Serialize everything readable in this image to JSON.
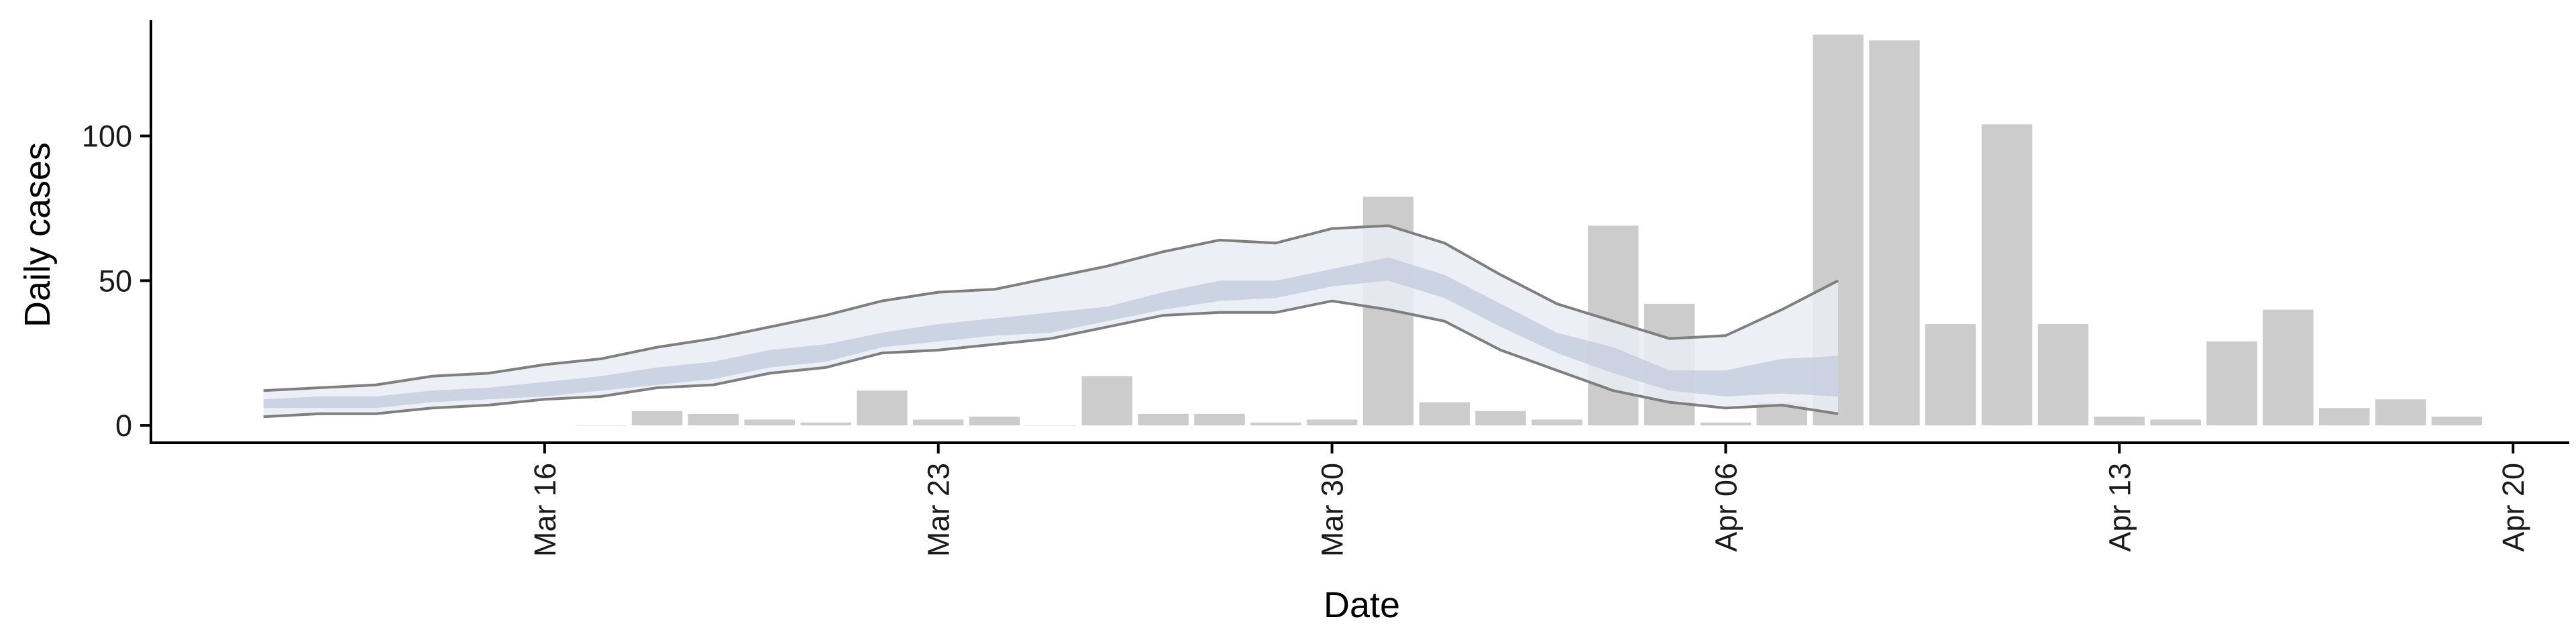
{
  "chart_data": {
    "type": "bar",
    "xlabel": "Date",
    "ylabel": "Daily cases",
    "ylim": [
      -6,
      140
    ],
    "xlim": [
      "2020-03-09",
      "2020-04-21"
    ],
    "x_ticks": [
      {
        "date": "2020-03-16",
        "label": "Mar 16"
      },
      {
        "date": "2020-03-23",
        "label": "Mar 23"
      },
      {
        "date": "2020-03-30",
        "label": "Mar 30"
      },
      {
        "date": "2020-04-06",
        "label": "Apr 06"
      },
      {
        "date": "2020-04-13",
        "label": "Apr 13"
      },
      {
        "date": "2020-04-20",
        "label": "Apr 20"
      }
    ],
    "y_ticks": [
      0,
      50,
      100
    ],
    "grid": false,
    "bars": [
      {
        "date": "2020-03-17",
        "value": 0
      },
      {
        "date": "2020-03-18",
        "value": 5
      },
      {
        "date": "2020-03-19",
        "value": 4
      },
      {
        "date": "2020-03-20",
        "value": 2
      },
      {
        "date": "2020-03-21",
        "value": 1
      },
      {
        "date": "2020-03-22",
        "value": 12
      },
      {
        "date": "2020-03-23",
        "value": 2
      },
      {
        "date": "2020-03-24",
        "value": 3
      },
      {
        "date": "2020-03-25",
        "value": 0
      },
      {
        "date": "2020-03-26",
        "value": 17
      },
      {
        "date": "2020-03-27",
        "value": 4
      },
      {
        "date": "2020-03-28",
        "value": 4
      },
      {
        "date": "2020-03-29",
        "value": 1
      },
      {
        "date": "2020-03-30",
        "value": 2
      },
      {
        "date": "2020-03-31",
        "value": 79
      },
      {
        "date": "2020-04-01",
        "value": 8
      },
      {
        "date": "2020-04-02",
        "value": 5
      },
      {
        "date": "2020-04-03",
        "value": 2
      },
      {
        "date": "2020-04-04",
        "value": 69
      },
      {
        "date": "2020-04-05",
        "value": 42
      },
      {
        "date": "2020-04-06",
        "value": 1
      },
      {
        "date": "2020-04-07",
        "value": 8
      },
      {
        "date": "2020-04-08",
        "value": 135
      },
      {
        "date": "2020-04-09",
        "value": 133
      },
      {
        "date": "2020-04-10",
        "value": 35
      },
      {
        "date": "2020-04-11",
        "value": 104
      },
      {
        "date": "2020-04-12",
        "value": 35
      },
      {
        "date": "2020-04-13",
        "value": 3
      },
      {
        "date": "2020-04-14",
        "value": 2
      },
      {
        "date": "2020-04-15",
        "value": 29
      },
      {
        "date": "2020-04-16",
        "value": 40
      },
      {
        "date": "2020-04-17",
        "value": 6
      },
      {
        "date": "2020-04-18",
        "value": 9
      },
      {
        "date": "2020-04-19",
        "value": 3
      }
    ],
    "estimate_start": "2020-03-11",
    "outer_band": {
      "upper": [
        12,
        13,
        14,
        17,
        18,
        21,
        23,
        27,
        30,
        34,
        38,
        43,
        46,
        47,
        51,
        55,
        60,
        64,
        63,
        68,
        69,
        63,
        52,
        42,
        36,
        30,
        31,
        40,
        50
      ],
      "lower": [
        3,
        4,
        4,
        6,
        7,
        9,
        10,
        13,
        14,
        18,
        20,
        25,
        26,
        28,
        30,
        34,
        38,
        39,
        39,
        43,
        40,
        36,
        26,
        19,
        12,
        8,
        6,
        7,
        4
      ]
    },
    "inner_band": {
      "upper": [
        9,
        10,
        10,
        12,
        13,
        15,
        17,
        20,
        22,
        26,
        28,
        32,
        35,
        37,
        39,
        41,
        46,
        50,
        50,
        54,
        58,
        52,
        42,
        32,
        27,
        19,
        19,
        23,
        24
      ],
      "lower": [
        6,
        6,
        6,
        8,
        9,
        10,
        12,
        14,
        16,
        20,
        22,
        27,
        29,
        31,
        32,
        36,
        40,
        43,
        44,
        48,
        50,
        44,
        34,
        25,
        18,
        12,
        10,
        11,
        10
      ]
    },
    "colors": {
      "bar": "#cccccc",
      "outer_band_fill": "#e9ecf3",
      "inner_band_fill": "#c9cfe0",
      "band_edge": "#7f7f7f",
      "axis": "#000000"
    }
  }
}
